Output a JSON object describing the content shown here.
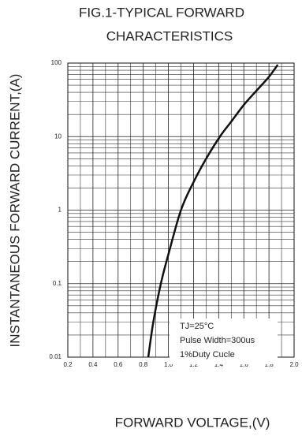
{
  "chart_data": {
    "type": "line",
    "title_lines": [
      "FIG.1-TYPICAL FORWARD",
      "CHARACTERISTICS"
    ],
    "x_label": "FORWARD VOLTAGE,(V)",
    "y_label": "INSTANTANEOUS FORWARD CURRENT,(A)",
    "annotation": [
      "TJ=25°C",
      "Pulse Width=300us",
      "1%Duty Cucle"
    ],
    "xlim": [
      0.2,
      2.0
    ],
    "ylim": [
      0.01,
      100
    ],
    "y_log": true,
    "grid": true,
    "minor_grid": true,
    "xticks": [
      0.2,
      0.4,
      0.6,
      0.8,
      {
        "value": 1.0,
        "label": "1.0"
      },
      1.2,
      1.4,
      1.6,
      1.8,
      {
        "value": 2.0,
        "label": "2.0"
      }
    ],
    "yticks": [
      0.01,
      0.1,
      1,
      10,
      100
    ],
    "series": [
      {
        "color": "#111111",
        "x": [
          0.84,
          0.88,
          0.94,
          1.0,
          1.1,
          1.2,
          1.3,
          1.41,
          1.5,
          1.6,
          1.7,
          1.8,
          1.87
        ],
        "values": [
          0.01,
          0.03,
          0.1,
          0.25,
          1,
          2.4,
          5,
          10,
          16,
          27,
          42,
          65,
          95
        ]
      }
    ]
  }
}
